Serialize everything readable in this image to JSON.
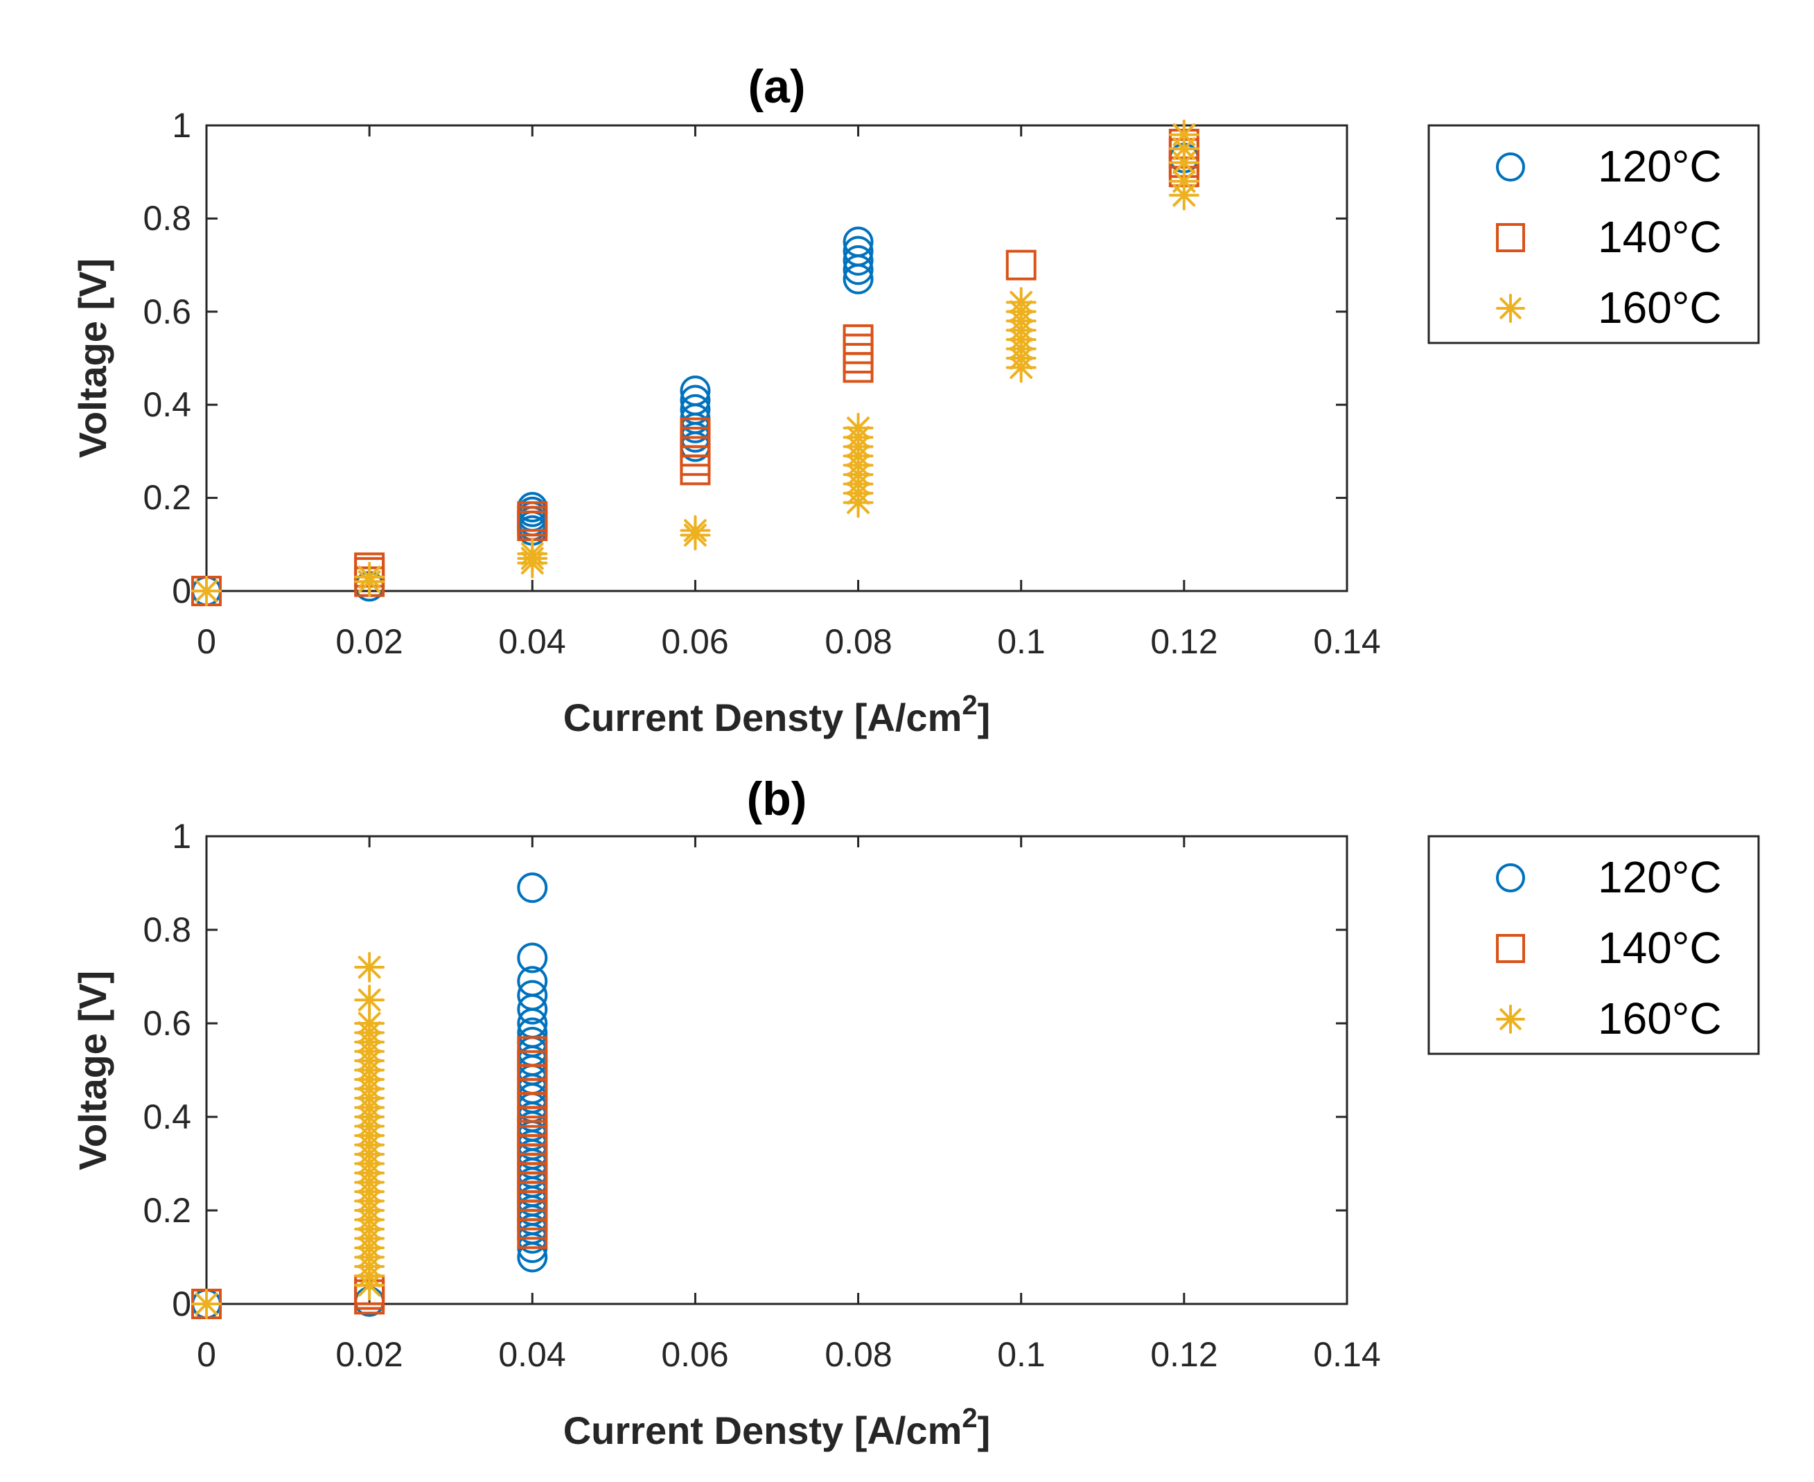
{
  "chart_data": [
    {
      "type": "scatter",
      "title": "(a)",
      "xlabel": "Current Densty [A/cm",
      "xlabel_sup": "2",
      "xlabel_end": "]",
      "ylabel": "Voltage [V]",
      "xlim": [
        0,
        0.14
      ],
      "ylim": [
        0,
        1
      ],
      "xticks": [
        0,
        0.02,
        0.04,
        0.06,
        0.08,
        0.1,
        0.12,
        0.14
      ],
      "xtick_labels": [
        "0",
        "0.02",
        "0.04",
        "0.06",
        "0.08",
        "0.1",
        "0.12",
        "0.14"
      ],
      "yticks": [
        0,
        0.2,
        0.4,
        0.6,
        0.8,
        1
      ],
      "ytick_labels": [
        "0",
        "0.2",
        "0.4",
        "0.6",
        "0.8",
        "1"
      ],
      "grid": false,
      "legend_position": "outside-right",
      "series": [
        {
          "name": "120°C",
          "marker": "circle",
          "color": "#0072BD",
          "points": [
            [
              0,
              0
            ],
            [
              0.02,
              0.01
            ],
            [
              0.04,
              0.13
            ],
            [
              0.04,
              0.14
            ],
            [
              0.04,
              0.15
            ],
            [
              0.04,
              0.16
            ],
            [
              0.04,
              0.17
            ],
            [
              0.04,
              0.18
            ],
            [
              0.06,
              0.31
            ],
            [
              0.06,
              0.33
            ],
            [
              0.06,
              0.35
            ],
            [
              0.06,
              0.37
            ],
            [
              0.06,
              0.39
            ],
            [
              0.06,
              0.41
            ],
            [
              0.06,
              0.43
            ],
            [
              0.08,
              0.67
            ],
            [
              0.08,
              0.69
            ],
            [
              0.08,
              0.71
            ],
            [
              0.08,
              0.73
            ],
            [
              0.08,
              0.75
            ],
            [
              0.12,
              0.93
            ]
          ]
        },
        {
          "name": "140°C",
          "marker": "square",
          "color": "#D95319",
          "points": [
            [
              0,
              0
            ],
            [
              0.02,
              0.02
            ],
            [
              0.02,
              0.04
            ],
            [
              0.02,
              0.05
            ],
            [
              0.04,
              0.14
            ],
            [
              0.04,
              0.15
            ],
            [
              0.04,
              0.16
            ],
            [
              0.06,
              0.26
            ],
            [
              0.06,
              0.28
            ],
            [
              0.06,
              0.3
            ],
            [
              0.06,
              0.32
            ],
            [
              0.06,
              0.34
            ],
            [
              0.08,
              0.48
            ],
            [
              0.08,
              0.5
            ],
            [
              0.08,
              0.52
            ],
            [
              0.08,
              0.54
            ],
            [
              0.1,
              0.7
            ],
            [
              0.12,
              0.9
            ],
            [
              0.12,
              0.92
            ],
            [
              0.12,
              0.94
            ],
            [
              0.12,
              0.96
            ]
          ]
        },
        {
          "name": "160°C",
          "marker": "asterisk",
          "color": "#EDB120",
          "points": [
            [
              0,
              0
            ],
            [
              0.02,
              0.02
            ],
            [
              0.02,
              0.03
            ],
            [
              0.04,
              0.06
            ],
            [
              0.04,
              0.07
            ],
            [
              0.04,
              0.08
            ],
            [
              0.06,
              0.12
            ],
            [
              0.06,
              0.13
            ],
            [
              0.08,
              0.19
            ],
            [
              0.08,
              0.21
            ],
            [
              0.08,
              0.23
            ],
            [
              0.08,
              0.25
            ],
            [
              0.08,
              0.27
            ],
            [
              0.08,
              0.29
            ],
            [
              0.08,
              0.31
            ],
            [
              0.08,
              0.33
            ],
            [
              0.08,
              0.35
            ],
            [
              0.1,
              0.48
            ],
            [
              0.1,
              0.5
            ],
            [
              0.1,
              0.52
            ],
            [
              0.1,
              0.54
            ],
            [
              0.1,
              0.56
            ],
            [
              0.1,
              0.58
            ],
            [
              0.1,
              0.6
            ],
            [
              0.1,
              0.62
            ],
            [
              0.12,
              0.85
            ],
            [
              0.12,
              0.88
            ],
            [
              0.12,
              0.92
            ],
            [
              0.12,
              0.95
            ],
            [
              0.12,
              0.98
            ]
          ]
        }
      ]
    },
    {
      "type": "scatter",
      "title": "(b)",
      "xlabel": "Current Densty [A/cm",
      "xlabel_sup": "2",
      "xlabel_end": "]",
      "ylabel": "Voltage [V]",
      "xlim": [
        0,
        0.14
      ],
      "ylim": [
        0,
        1
      ],
      "xticks": [
        0,
        0.02,
        0.04,
        0.06,
        0.08,
        0.1,
        0.12,
        0.14
      ],
      "xtick_labels": [
        "0",
        "0.02",
        "0.04",
        "0.06",
        "0.08",
        "0.1",
        "0.12",
        "0.14"
      ],
      "yticks": [
        0,
        0.2,
        0.4,
        0.6,
        0.8,
        1
      ],
      "ytick_labels": [
        "0",
        "0.2",
        "0.4",
        "0.6",
        "0.8",
        "1"
      ],
      "grid": false,
      "legend_position": "outside-right",
      "series": [
        {
          "name": "120°C",
          "marker": "circle",
          "color": "#0072BD",
          "points": [
            [
              0,
              0
            ],
            [
              0.02,
              0.005
            ],
            [
              0.04,
              0.1
            ],
            [
              0.04,
              0.12
            ],
            [
              0.04,
              0.14
            ],
            [
              0.04,
              0.16
            ],
            [
              0.04,
              0.18
            ],
            [
              0.04,
              0.2
            ],
            [
              0.04,
              0.22
            ],
            [
              0.04,
              0.24
            ],
            [
              0.04,
              0.26
            ],
            [
              0.04,
              0.28
            ],
            [
              0.04,
              0.3
            ],
            [
              0.04,
              0.32
            ],
            [
              0.04,
              0.34
            ],
            [
              0.04,
              0.36
            ],
            [
              0.04,
              0.38
            ],
            [
              0.04,
              0.4
            ],
            [
              0.04,
              0.42
            ],
            [
              0.04,
              0.44
            ],
            [
              0.04,
              0.46
            ],
            [
              0.04,
              0.48
            ],
            [
              0.04,
              0.5
            ],
            [
              0.04,
              0.52
            ],
            [
              0.04,
              0.54
            ],
            [
              0.04,
              0.56
            ],
            [
              0.04,
              0.58
            ],
            [
              0.04,
              0.6
            ],
            [
              0.04,
              0.63
            ],
            [
              0.04,
              0.66
            ],
            [
              0.04,
              0.69
            ],
            [
              0.04,
              0.74
            ],
            [
              0.04,
              0.89
            ]
          ]
        },
        {
          "name": "140°C",
          "marker": "square",
          "color": "#D95319",
          "points": [
            [
              0,
              0
            ],
            [
              0.02,
              0.01
            ],
            [
              0.02,
              0.02
            ],
            [
              0.02,
              0.03
            ],
            [
              0.04,
              0.15
            ],
            [
              0.04,
              0.17
            ],
            [
              0.04,
              0.19
            ],
            [
              0.04,
              0.21
            ],
            [
              0.04,
              0.23
            ],
            [
              0.04,
              0.25
            ],
            [
              0.04,
              0.27
            ],
            [
              0.04,
              0.29
            ],
            [
              0.04,
              0.31
            ],
            [
              0.04,
              0.33
            ],
            [
              0.04,
              0.35
            ],
            [
              0.04,
              0.37
            ],
            [
              0.04,
              0.39
            ],
            [
              0.04,
              0.42
            ],
            [
              0.04,
              0.45
            ],
            [
              0.04,
              0.48
            ],
            [
              0.04,
              0.51
            ],
            [
              0.04,
              0.54
            ]
          ]
        },
        {
          "name": "160°C",
          "marker": "asterisk",
          "color": "#EDB120",
          "points": [
            [
              0,
              0
            ],
            [
              0.02,
              0.04
            ],
            [
              0.02,
              0.06
            ],
            [
              0.02,
              0.08
            ],
            [
              0.02,
              0.1
            ],
            [
              0.02,
              0.12
            ],
            [
              0.02,
              0.14
            ],
            [
              0.02,
              0.16
            ],
            [
              0.02,
              0.18
            ],
            [
              0.02,
              0.2
            ],
            [
              0.02,
              0.22
            ],
            [
              0.02,
              0.24
            ],
            [
              0.02,
              0.26
            ],
            [
              0.02,
              0.28
            ],
            [
              0.02,
              0.3
            ],
            [
              0.02,
              0.32
            ],
            [
              0.02,
              0.34
            ],
            [
              0.02,
              0.36
            ],
            [
              0.02,
              0.38
            ],
            [
              0.02,
              0.4
            ],
            [
              0.02,
              0.42
            ],
            [
              0.02,
              0.44
            ],
            [
              0.02,
              0.46
            ],
            [
              0.02,
              0.48
            ],
            [
              0.02,
              0.5
            ],
            [
              0.02,
              0.52
            ],
            [
              0.02,
              0.54
            ],
            [
              0.02,
              0.56
            ],
            [
              0.02,
              0.58
            ],
            [
              0.02,
              0.6
            ],
            [
              0.02,
              0.65
            ],
            [
              0.02,
              0.72
            ]
          ]
        }
      ]
    }
  ]
}
